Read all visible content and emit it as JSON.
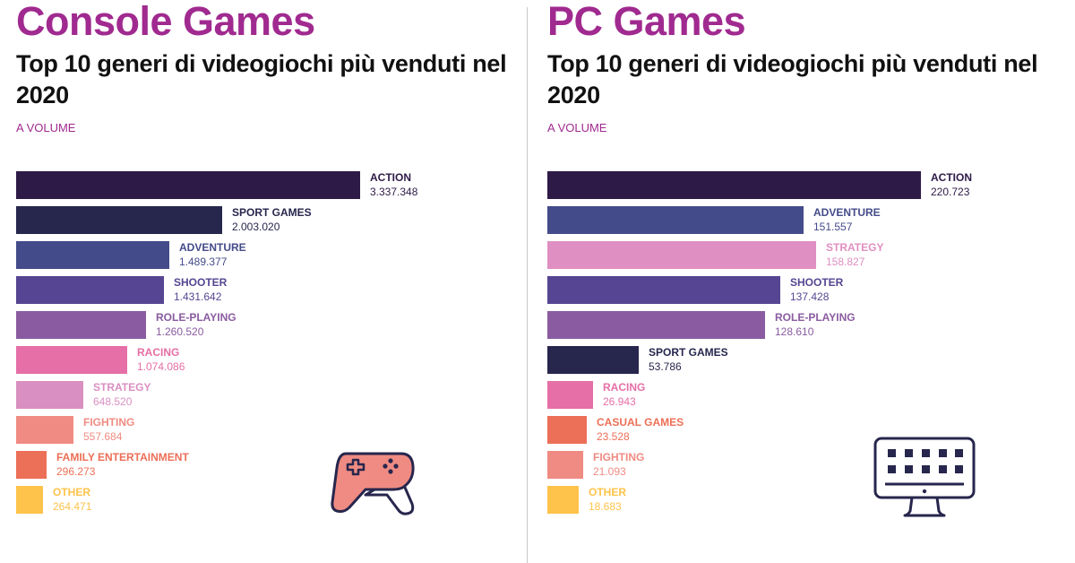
{
  "chart_data": [
    {
      "type": "bar",
      "orientation": "horizontal",
      "title": "Console Games",
      "subtitle": "Top 10 generi di videogiochi più venduti nel 2020",
      "unit_label": "A VOLUME",
      "categories": [
        "ACTION",
        "SPORT GAMES",
        "ADVENTURE",
        "SHOOTER",
        "ROLE-PLAYING",
        "RACING",
        "STRATEGY",
        "FIGHTING",
        "FAMILY ENTERTAINMENT",
        "OTHER"
      ],
      "values": [
        3337348,
        2003020,
        1489377,
        1431642,
        1260520,
        1074086,
        648520,
        557684,
        296273,
        264471
      ],
      "value_labels": [
        "3.337.348",
        "2.003.020",
        "1.489.377",
        "1.431.642",
        "1.260.520",
        "1.074.086",
        "648.520",
        "557.684",
        "296.273",
        "264.471"
      ],
      "colors": [
        "#2e1a47",
        "#27264d",
        "#444b8a",
        "#564592",
        "#8a5ba0",
        "#e56fa6",
        "#d98fc1",
        "#ef8b82",
        "#ec6f57",
        "#fec34a"
      ],
      "label_colors": [
        "#2e1a47",
        "#27264d",
        "#444b8a",
        "#564592",
        "#8a5ba0",
        "#e56fa6",
        "#d98fc1",
        "#ef8b82",
        "#ec6f57",
        "#fec34a"
      ],
      "xlim": [
        0,
        3337348
      ],
      "grid": false,
      "icon": "gamepad-icon"
    },
    {
      "type": "bar",
      "orientation": "horizontal",
      "title": "PC Games",
      "subtitle": "Top 10 generi di videogiochi più venduti nel 2020",
      "unit_label": "A VOLUME",
      "categories": [
        "ACTION",
        "ADVENTURE",
        "STRATEGY",
        "SHOOTER",
        "ROLE-PLAYING",
        "SPORT GAMES",
        "RACING",
        "CASUAL GAMES",
        "FIGHTING",
        "OTHER"
      ],
      "values": [
        220723,
        151557,
        158827,
        137428,
        128610,
        53786,
        26943,
        23528,
        21093,
        18683
      ],
      "value_labels": [
        "220.723",
        "151.557",
        "158.827",
        "137.428",
        "128.610",
        "53.786",
        "26.943",
        "23.528",
        "21.093",
        "18.683"
      ],
      "colors": [
        "#2e1a47",
        "#444b8a",
        "#e08fc2",
        "#564592",
        "#8a5ba0",
        "#27264d",
        "#e56fa6",
        "#ec6f57",
        "#ef8b82",
        "#fec34a"
      ],
      "label_colors": [
        "#2e1a47",
        "#444b8a",
        "#e08fc2",
        "#564592",
        "#8a5ba0",
        "#27264d",
        "#e56fa6",
        "#ec6f57",
        "#ef8b82",
        "#fec34a"
      ],
      "xlim": [
        0,
        220723
      ],
      "grid": false,
      "icon": "monitor-icon"
    }
  ]
}
